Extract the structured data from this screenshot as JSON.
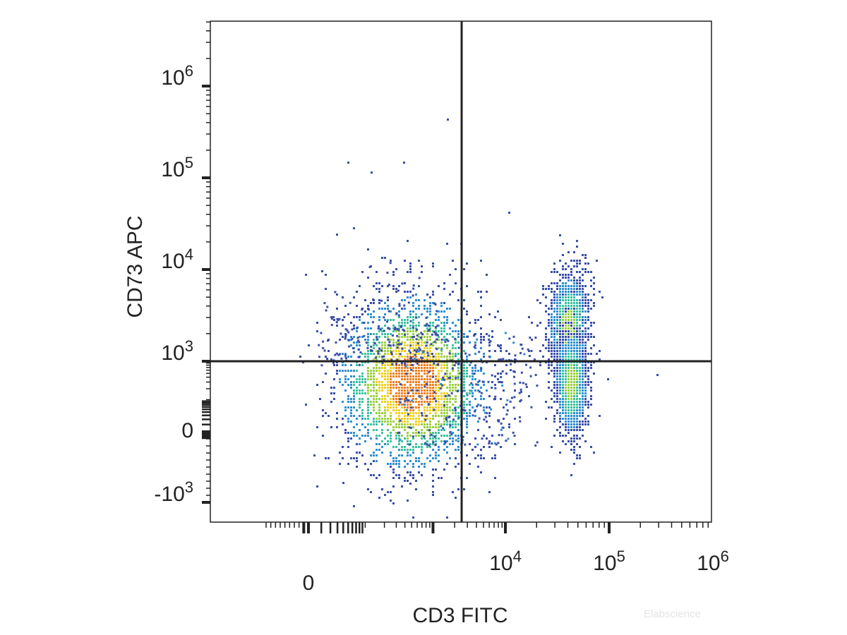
{
  "chart_data": {
    "type": "heatmap",
    "subtype": "flow-cytometry-density-dot-plot",
    "title": "",
    "xlabel": "CD3 FITC",
    "ylabel": "CD73 APC",
    "x_scale": "biexponential",
    "y_scale": "biexponential",
    "x_ticks": [
      {
        "value": 0,
        "base": "0",
        "exp": ""
      },
      {
        "value": 10000,
        "base": "10",
        "exp": "4"
      },
      {
        "value": 100000,
        "base": "10",
        "exp": "5"
      },
      {
        "value": 1000000,
        "base": "10",
        "exp": "6"
      }
    ],
    "y_ticks": [
      {
        "value": -1000,
        "base": "-10",
        "exp": "3"
      },
      {
        "value": 0,
        "base": "0",
        "exp": ""
      },
      {
        "value": 1000,
        "base": "10",
        "exp": "3"
      },
      {
        "value": 10000,
        "base": "10",
        "exp": "4"
      },
      {
        "value": 100000,
        "base": "10",
        "exp": "5"
      },
      {
        "value": 1000000,
        "base": "10",
        "exp": "6"
      }
    ],
    "gates": {
      "x_threshold": 2500,
      "y_threshold": 1000
    },
    "populations": [
      {
        "cx": 500,
        "cy": 300,
        "sx_decades": 0.28,
        "sy_decades": 0.33,
        "relative_density": 1.0,
        "peak_color": "red"
      },
      {
        "cx": 40000,
        "cy": 2500,
        "sx_decades": 0.1,
        "sy_decades": 0.3,
        "relative_density": 0.45,
        "peak_color": "green"
      },
      {
        "cx": 42000,
        "cy": 300,
        "sx_decades": 0.08,
        "sy_decades": 0.3,
        "relative_density": 0.45,
        "peak_color": "green"
      }
    ],
    "colormap": [
      "#3a4fa8",
      "#2f8fd0",
      "#3cc0a0",
      "#9ad040",
      "#f0d020",
      "#f08020",
      "#e02020"
    ],
    "grid": false,
    "legend": "none"
  },
  "watermark": "Elabscience"
}
